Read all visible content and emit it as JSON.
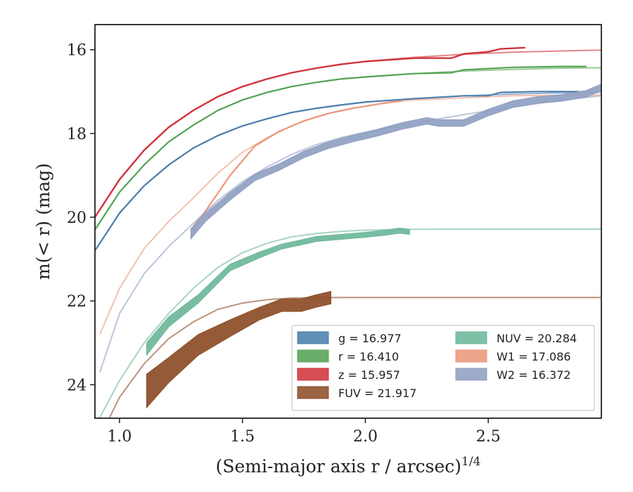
{
  "chart_data": {
    "type": "line",
    "xlabel": "(Semi-major axis r / arcsec)",
    "xlabel_sup": "1/4",
    "ylabel": "m(< r) (mag)",
    "xlim": [
      0.9,
      2.96
    ],
    "ylim": [
      24.8,
      15.4
    ],
    "y_inverted": true,
    "x_ticks": [
      1.0,
      1.5,
      2.0,
      2.5
    ],
    "x_tick_labels": [
      "1.0",
      "1.5",
      "2.0",
      "2.5"
    ],
    "y_ticks": [
      16,
      18,
      20,
      22,
      24
    ],
    "y_tick_labels": [
      "16",
      "18",
      "20",
      "22",
      "24"
    ],
    "grid": false,
    "legend_position": "lower-right",
    "legend": [
      {
        "label": "g = 16.977",
        "color": "#4c7fad"
      },
      {
        "label": "r = 16.410",
        "color": "#55a454"
      },
      {
        "label": "z = 15.957",
        "color": "#d0343b"
      },
      {
        "label": "FUV = 21.917",
        "color": "#8c4d28"
      },
      {
        "label": "NUV = 20.284",
        "color": "#6cb79a"
      },
      {
        "label": "W1 = 17.086",
        "color": "#ec967b"
      },
      {
        "label": "W2 = 16.372",
        "color": "#909fc2"
      }
    ],
    "series": [
      {
        "name": "g = 16.977",
        "color": "#4c7fad",
        "model": [
          [
            0.9,
            20.8
          ],
          [
            1.0,
            19.9
          ],
          [
            1.1,
            19.25
          ],
          [
            1.2,
            18.75
          ],
          [
            1.3,
            18.35
          ],
          [
            1.4,
            18.05
          ],
          [
            1.5,
            17.82
          ],
          [
            1.6,
            17.65
          ],
          [
            1.7,
            17.5
          ],
          [
            1.8,
            17.4
          ],
          [
            1.9,
            17.32
          ],
          [
            2.0,
            17.25
          ],
          [
            2.2,
            17.17
          ],
          [
            2.4,
            17.1
          ],
          [
            2.6,
            17.06
          ],
          [
            2.8,
            17.03
          ],
          [
            2.96,
            17.02
          ]
        ],
        "data": [
          [
            0.9,
            20.8
          ],
          [
            1.0,
            19.9
          ],
          [
            1.1,
            19.25
          ],
          [
            1.2,
            18.75
          ],
          [
            1.3,
            18.35
          ],
          [
            1.4,
            18.05
          ],
          [
            1.5,
            17.82
          ],
          [
            1.6,
            17.65
          ],
          [
            1.7,
            17.5
          ],
          [
            1.8,
            17.4
          ],
          [
            1.9,
            17.32
          ],
          [
            2.0,
            17.25
          ],
          [
            2.2,
            17.17
          ],
          [
            2.4,
            17.1
          ],
          [
            2.5,
            17.1
          ],
          [
            2.55,
            17.02
          ],
          [
            2.7,
            17.0
          ],
          [
            2.87,
            17.0
          ]
        ],
        "width": 2.2
      },
      {
        "name": "r = 16.410",
        "color": "#55a454",
        "model": [
          [
            0.9,
            20.3
          ],
          [
            1.0,
            19.4
          ],
          [
            1.1,
            18.75
          ],
          [
            1.2,
            18.2
          ],
          [
            1.3,
            17.8
          ],
          [
            1.4,
            17.45
          ],
          [
            1.5,
            17.2
          ],
          [
            1.6,
            17.02
          ],
          [
            1.7,
            16.88
          ],
          [
            1.8,
            16.78
          ],
          [
            1.9,
            16.7
          ],
          [
            2.0,
            16.65
          ],
          [
            2.2,
            16.57
          ],
          [
            2.4,
            16.51
          ],
          [
            2.6,
            16.47
          ],
          [
            2.8,
            16.44
          ],
          [
            2.96,
            16.43
          ]
        ],
        "data": [
          [
            0.9,
            20.3
          ],
          [
            1.0,
            19.4
          ],
          [
            1.1,
            18.75
          ],
          [
            1.2,
            18.2
          ],
          [
            1.3,
            17.8
          ],
          [
            1.4,
            17.45
          ],
          [
            1.5,
            17.2
          ],
          [
            1.6,
            17.02
          ],
          [
            1.7,
            16.88
          ],
          [
            1.8,
            16.78
          ],
          [
            1.9,
            16.7
          ],
          [
            2.0,
            16.65
          ],
          [
            2.2,
            16.57
          ],
          [
            2.35,
            16.55
          ],
          [
            2.4,
            16.48
          ],
          [
            2.6,
            16.42
          ],
          [
            2.8,
            16.4
          ],
          [
            2.9,
            16.4
          ]
        ],
        "width": 2.2
      },
      {
        "name": "z = 15.957",
        "color": "#d0343b",
        "model": [
          [
            0.9,
            20.0
          ],
          [
            1.0,
            19.1
          ],
          [
            1.1,
            18.4
          ],
          [
            1.2,
            17.85
          ],
          [
            1.3,
            17.45
          ],
          [
            1.4,
            17.12
          ],
          [
            1.5,
            16.88
          ],
          [
            1.6,
            16.7
          ],
          [
            1.7,
            16.55
          ],
          [
            1.8,
            16.44
          ],
          [
            1.9,
            16.35
          ],
          [
            2.0,
            16.28
          ],
          [
            2.2,
            16.18
          ],
          [
            2.4,
            16.11
          ],
          [
            2.6,
            16.06
          ],
          [
            2.8,
            16.03
          ],
          [
            2.96,
            16.01
          ]
        ],
        "data": [
          [
            0.9,
            20.0
          ],
          [
            1.0,
            19.1
          ],
          [
            1.1,
            18.4
          ],
          [
            1.2,
            17.85
          ],
          [
            1.3,
            17.45
          ],
          [
            1.4,
            17.12
          ],
          [
            1.5,
            16.88
          ],
          [
            1.6,
            16.7
          ],
          [
            1.7,
            16.55
          ],
          [
            1.8,
            16.44
          ],
          [
            1.9,
            16.35
          ],
          [
            2.0,
            16.28
          ],
          [
            2.2,
            16.2
          ],
          [
            2.35,
            16.2
          ],
          [
            2.4,
            16.1
          ],
          [
            2.5,
            16.05
          ],
          [
            2.55,
            15.98
          ],
          [
            2.65,
            15.95
          ]
        ],
        "width": 2.4
      },
      {
        "name": "FUV = 21.917",
        "color": "#8c4d28",
        "model": [
          [
            0.9,
            25.5
          ],
          [
            1.0,
            24.3
          ],
          [
            1.1,
            23.5
          ],
          [
            1.2,
            22.9
          ],
          [
            1.3,
            22.5
          ],
          [
            1.4,
            22.2
          ],
          [
            1.5,
            22.05
          ],
          [
            1.6,
            21.97
          ],
          [
            1.7,
            21.93
          ],
          [
            1.8,
            21.92
          ],
          [
            2.0,
            21.917
          ],
          [
            2.5,
            21.917
          ],
          [
            2.96,
            21.917
          ]
        ],
        "data": [
          [
            1.11,
            24.15
          ],
          [
            1.2,
            23.65
          ],
          [
            1.32,
            23.05
          ],
          [
            1.45,
            22.65
          ],
          [
            1.57,
            22.3
          ],
          [
            1.66,
            22.1
          ],
          [
            1.74,
            22.1
          ],
          [
            1.8,
            22.0
          ],
          [
            1.86,
            21.92
          ]
        ],
        "data_halfwidth": [
          0.4,
          0.3,
          0.25,
          0.2,
          0.15,
          0.15,
          0.15,
          0.15,
          0.15
        ],
        "width": 1.8
      },
      {
        "name": "NUV = 20.284",
        "color": "#6cb79a",
        "model": [
          [
            0.9,
            25.0
          ],
          [
            1.0,
            23.9
          ],
          [
            1.1,
            23.0
          ],
          [
            1.2,
            22.3
          ],
          [
            1.3,
            21.7
          ],
          [
            1.4,
            21.2
          ],
          [
            1.5,
            20.85
          ],
          [
            1.6,
            20.62
          ],
          [
            1.7,
            20.47
          ],
          [
            1.8,
            20.39
          ],
          [
            1.9,
            20.34
          ],
          [
            2.0,
            20.31
          ],
          [
            2.2,
            20.29
          ],
          [
            2.5,
            20.285
          ],
          [
            2.96,
            20.284
          ]
        ],
        "data": [
          [
            1.11,
            23.15
          ],
          [
            1.2,
            22.5
          ],
          [
            1.32,
            21.95
          ],
          [
            1.45,
            21.2
          ],
          [
            1.57,
            20.9
          ],
          [
            1.66,
            20.7
          ],
          [
            1.74,
            20.6
          ],
          [
            1.8,
            20.52
          ],
          [
            1.9,
            20.47
          ],
          [
            2.0,
            20.42
          ],
          [
            2.08,
            20.37
          ],
          [
            2.14,
            20.32
          ],
          [
            2.18,
            20.35
          ]
        ],
        "data_halfwidth": [
          0.15,
          0.12,
          0.1,
          0.08,
          0.07,
          0.06,
          0.06,
          0.06,
          0.06,
          0.06,
          0.06,
          0.06,
          0.06
        ],
        "width": 2
      },
      {
        "name": "W1 = 17.086",
        "color": "#ec967b",
        "model": [
          [
            0.92,
            22.8
          ],
          [
            1.0,
            21.7
          ],
          [
            1.1,
            20.75
          ],
          [
            1.2,
            20.1
          ],
          [
            1.29,
            19.6
          ],
          [
            1.4,
            18.95
          ],
          [
            1.5,
            18.45
          ],
          [
            1.6,
            18.1
          ],
          [
            1.7,
            17.82
          ],
          [
            1.8,
            17.6
          ],
          [
            1.9,
            17.45
          ],
          [
            2.0,
            17.35
          ],
          [
            2.1,
            17.25
          ],
          [
            2.2,
            17.2
          ],
          [
            2.4,
            17.15
          ],
          [
            2.6,
            17.1
          ],
          [
            2.8,
            17.09
          ],
          [
            2.96,
            17.086
          ]
        ],
        "data": [
          [
            1.29,
            20.3
          ],
          [
            1.35,
            19.85
          ],
          [
            1.45,
            19.0
          ],
          [
            1.55,
            18.3
          ],
          [
            1.65,
            17.95
          ],
          [
            1.75,
            17.7
          ],
          [
            1.85,
            17.52
          ],
          [
            1.95,
            17.4
          ],
          [
            2.05,
            17.3
          ],
          [
            2.15,
            17.22
          ]
        ],
        "width": 2.2
      },
      {
        "name": "W2 = 16.372",
        "color": "#909fc2",
        "model": [
          [
            0.92,
            23.7
          ],
          [
            1.0,
            22.3
          ],
          [
            1.1,
            21.35
          ],
          [
            1.2,
            20.7
          ],
          [
            1.3,
            20.15
          ],
          [
            1.4,
            19.6
          ],
          [
            1.5,
            19.15
          ],
          [
            1.6,
            18.8
          ],
          [
            1.7,
            18.5
          ],
          [
            1.8,
            18.27
          ],
          [
            1.9,
            18.1
          ],
          [
            2.0,
            17.97
          ],
          [
            2.2,
            17.75
          ],
          [
            2.4,
            17.55
          ],
          [
            2.6,
            17.37
          ],
          [
            2.8,
            17.2
          ],
          [
            2.96,
            17.1
          ]
        ],
        "data": [
          [
            1.29,
            20.4
          ],
          [
            1.35,
            20.0
          ],
          [
            1.45,
            19.5
          ],
          [
            1.55,
            19.05
          ],
          [
            1.65,
            18.8
          ],
          [
            1.75,
            18.5
          ],
          [
            1.85,
            18.28
          ],
          [
            1.95,
            18.12
          ],
          [
            2.05,
            17.98
          ],
          [
            2.15,
            17.82
          ],
          [
            2.25,
            17.7
          ],
          [
            2.3,
            17.75
          ],
          [
            2.4,
            17.75
          ],
          [
            2.5,
            17.5
          ],
          [
            2.6,
            17.3
          ],
          [
            2.7,
            17.2
          ],
          [
            2.8,
            17.15
          ],
          [
            2.9,
            17.05
          ],
          [
            2.96,
            16.9
          ]
        ],
        "data_halfwidth": [
          0.12,
          0.1,
          0.09,
          0.08,
          0.08,
          0.08,
          0.08,
          0.08,
          0.08,
          0.08,
          0.08,
          0.08,
          0.08,
          0.08,
          0.08,
          0.08,
          0.08,
          0.08,
          0.08
        ],
        "width": 2
      }
    ]
  }
}
